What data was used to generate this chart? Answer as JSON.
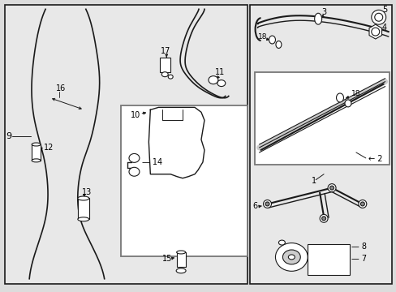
{
  "bg_color": "#dcdcdc",
  "left_box_color": "#e8e8e8",
  "right_box_color": "#e8e8e8",
  "inner_box_color": "#ffffff",
  "blade_box_color": "#d0d0d0",
  "line_color": "#1a1a1a",
  "label_color": "#000000"
}
